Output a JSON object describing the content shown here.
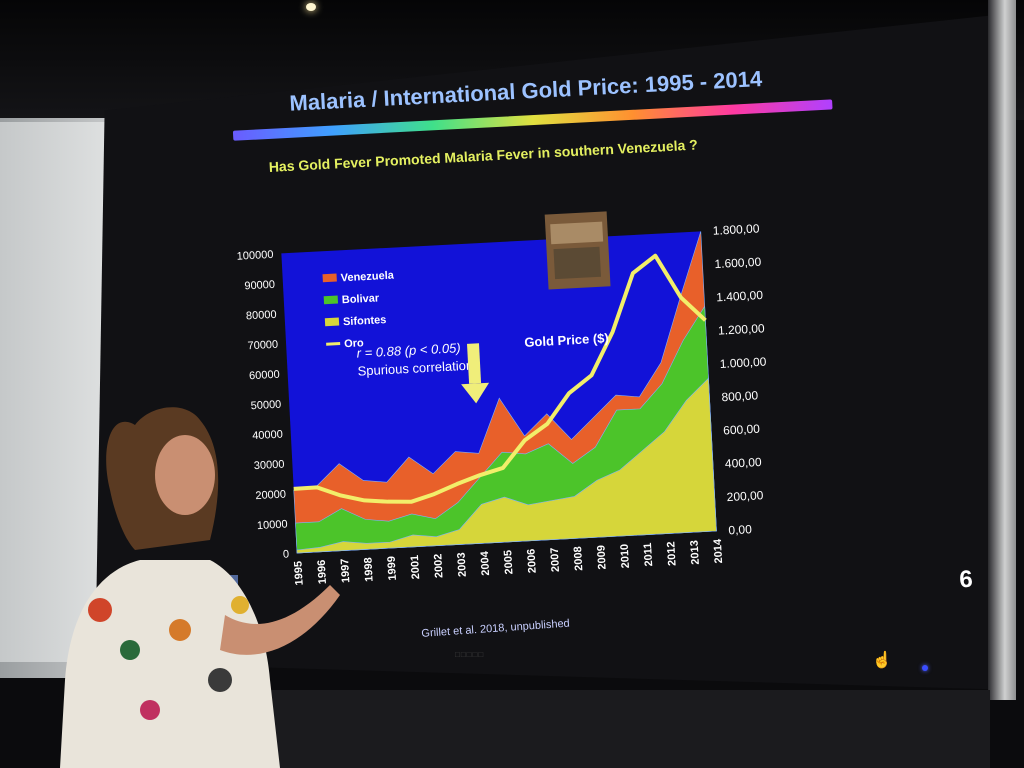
{
  "slide": {
    "title": "Malaria / International Gold Price: 1995 - 2014",
    "subtitle": "Has Gold Fever Promoted Malaria Fever in southern Venezuela ?",
    "annotation_corr": "r = 0.88 (p < 0.05)",
    "annotation_spurious": "Spurious correlation?",
    "gold_price_label": "Gold Price ($)",
    "citation": "Grillet et al. 2018, unpublished",
    "page_number": "6"
  },
  "chart_data": {
    "type": "area",
    "title": "",
    "x": [
      "1995",
      "1996",
      "1997",
      "1998",
      "1999",
      "2001",
      "2002",
      "2003",
      "2004",
      "2005",
      "2006",
      "2007",
      "2008",
      "2009",
      "2010",
      "2011",
      "2012",
      "2013",
      "2014"
    ],
    "y_left_ticks": [
      "100000",
      "90000",
      "80000",
      "70000",
      "60000",
      "50000",
      "40000",
      "30000",
      "20000",
      "10000",
      "0"
    ],
    "y_right_ticks": [
      "1.800,00",
      "1.600,00",
      "1.400,00",
      "1.200,00",
      "1.000,00",
      "800,00",
      "600,00",
      "400,00",
      "200,00",
      "0,00"
    ],
    "ylim_left": [
      0,
      100000
    ],
    "ylim_right": [
      0,
      1800
    ],
    "legend_position": "top-left",
    "series": [
      {
        "name": "Venezuela",
        "type": "area",
        "axis": "left",
        "color": "#e8602a",
        "values": [
          21000,
          22000,
          29000,
          23000,
          22000,
          30000,
          24000,
          31000,
          30000,
          48000,
          35000,
          42000,
          33000,
          40000,
          47000,
          46000,
          57000,
          79000,
          100000
        ]
      },
      {
        "name": "Bolivar",
        "type": "area",
        "axis": "left",
        "color": "#4cc42a",
        "values": [
          10000,
          10000,
          14000,
          10000,
          9000,
          11000,
          9000,
          14000,
          22000,
          30000,
          29000,
          32000,
          25000,
          30000,
          42000,
          42000,
          50000,
          64000,
          75000
        ]
      },
      {
        "name": "Sifontes",
        "type": "area",
        "axis": "left",
        "color": "#d6d63a",
        "values": [
          1000,
          1500,
          3000,
          2000,
          2000,
          4000,
          3000,
          5000,
          13000,
          15000,
          12000,
          13000,
          14000,
          19000,
          22000,
          28000,
          34000,
          44000,
          51000
        ]
      },
      {
        "name": "Oro",
        "type": "line",
        "axis": "right",
        "color": "#f2ee6a",
        "values": [
          385,
          387,
          331,
          294,
          279,
          271,
          310,
          363,
          409,
          445,
          604,
          695,
          872,
          972,
          1225,
          1571,
          1669,
          1411,
          1266
        ]
      }
    ],
    "arrow_at": "2004"
  }
}
